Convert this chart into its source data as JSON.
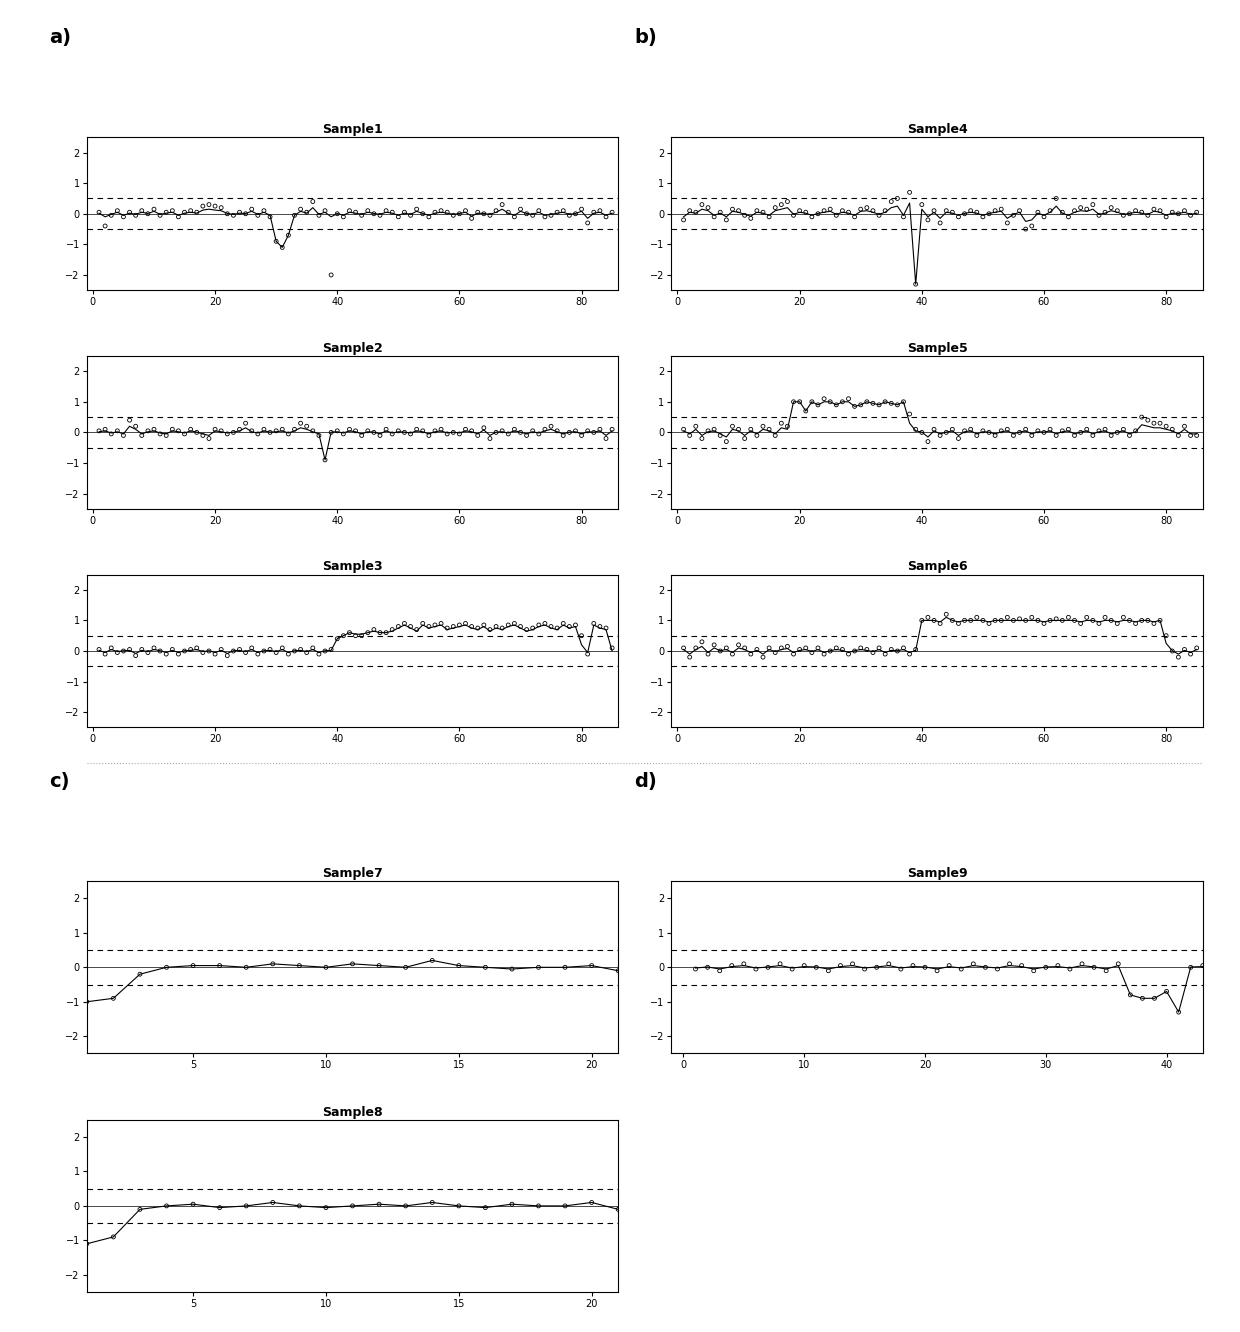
{
  "panels": {
    "a_label": "a)",
    "b_label": "b)",
    "c_label": "c)",
    "d_label": "d)"
  },
  "sample1": {
    "title": "Sample1",
    "n": 85,
    "xlim": [
      -1,
      86
    ],
    "ylim": [
      -2.5,
      2.5
    ],
    "yticks": [
      -2,
      -1,
      0,
      1,
      2
    ],
    "xticks": [
      0,
      20,
      40,
      60,
      80
    ],
    "threshold": 0.5,
    "scatter_y": [
      0.05,
      -0.4,
      -0.05,
      0.1,
      -0.1,
      0.05,
      -0.05,
      0.1,
      0.0,
      0.15,
      -0.05,
      0.05,
      0.1,
      -0.1,
      0.05,
      0.1,
      0.05,
      0.25,
      0.3,
      0.25,
      0.2,
      0.0,
      -0.05,
      0.05,
      0.0,
      0.15,
      -0.05,
      0.1,
      -0.1,
      -0.9,
      -1.1,
      -0.7,
      -0.05,
      0.15,
      0.05,
      0.4,
      -0.05,
      0.1,
      -2.0,
      0.0,
      -0.1,
      0.1,
      0.05,
      -0.05,
      0.1,
      0.0,
      -0.05,
      0.1,
      0.05,
      -0.1,
      0.05,
      -0.05,
      0.15,
      0.0,
      -0.1,
      0.05,
      0.1,
      0.05,
      -0.05,
      0.0,
      0.1,
      -0.15,
      0.05,
      0.0,
      -0.05,
      0.1,
      0.3,
      0.05,
      -0.1,
      0.15,
      0.0,
      -0.05,
      0.1,
      -0.1,
      -0.05,
      0.05,
      0.1,
      -0.05,
      0.0,
      0.15,
      -0.3,
      0.05,
      0.1,
      -0.1,
      0.05
    ],
    "line_y": [
      0.02,
      -0.1,
      -0.02,
      0.05,
      -0.05,
      0.02,
      -0.02,
      0.05,
      0.01,
      0.08,
      -0.02,
      0.02,
      0.05,
      -0.05,
      0.02,
      0.05,
      0.02,
      0.12,
      0.15,
      0.12,
      0.1,
      0.01,
      -0.02,
      0.02,
      0.01,
      0.08,
      -0.02,
      0.05,
      -0.05,
      -0.9,
      -1.1,
      -0.7,
      -0.05,
      0.08,
      0.02,
      0.2,
      -0.02,
      0.05,
      -0.1,
      0.01,
      -0.05,
      0.05,
      0.02,
      -0.02,
      0.05,
      0.01,
      -0.02,
      0.05,
      0.02,
      -0.05,
      0.02,
      -0.02,
      0.08,
      0.01,
      -0.05,
      0.02,
      0.05,
      0.02,
      -0.02,
      0.01,
      0.05,
      -0.08,
      0.02,
      0.01,
      -0.02,
      0.05,
      0.15,
      0.02,
      -0.05,
      0.08,
      0.01,
      -0.02,
      0.05,
      -0.05,
      -0.02,
      0.02,
      0.05,
      -0.02,
      0.01,
      0.08,
      -0.15,
      0.02,
      0.05,
      -0.05,
      0.02
    ]
  },
  "sample2": {
    "title": "Sample2",
    "n": 85,
    "xlim": [
      -1,
      86
    ],
    "ylim": [
      -2.5,
      2.5
    ],
    "yticks": [
      -2,
      -1,
      0,
      1,
      2
    ],
    "xticks": [
      0,
      20,
      40,
      60,
      80
    ],
    "threshold": 0.5,
    "scatter_y": [
      0.05,
      0.1,
      -0.05,
      0.05,
      -0.1,
      0.4,
      0.2,
      -0.1,
      0.05,
      0.1,
      -0.05,
      -0.1,
      0.1,
      0.05,
      -0.05,
      0.1,
      0.0,
      -0.1,
      -0.2,
      0.1,
      0.05,
      -0.05,
      0.0,
      0.1,
      0.3,
      0.05,
      -0.05,
      0.1,
      0.0,
      0.05,
      0.1,
      -0.05,
      0.1,
      0.3,
      0.2,
      0.05,
      -0.1,
      -0.9,
      0.0,
      0.05,
      -0.05,
      0.1,
      0.05,
      -0.1,
      0.05,
      0.0,
      -0.1,
      0.1,
      -0.05,
      0.05,
      0.0,
      -0.05,
      0.1,
      0.05,
      -0.1,
      0.05,
      0.1,
      -0.05,
      0.0,
      -0.05,
      0.1,
      0.05,
      -0.1,
      0.15,
      -0.2,
      0.0,
      0.05,
      -0.05,
      0.1,
      0.0,
      -0.1,
      0.05,
      -0.05,
      0.1,
      0.2,
      0.05,
      -0.1,
      0.0,
      0.05,
      -0.1,
      0.05,
      0.0,
      0.1,
      -0.2,
      0.1
    ],
    "line_y": [
      0.02,
      0.05,
      -0.02,
      0.02,
      -0.05,
      0.2,
      0.1,
      -0.05,
      0.02,
      0.05,
      -0.02,
      -0.05,
      0.05,
      0.02,
      -0.02,
      0.05,
      0.01,
      -0.05,
      -0.1,
      0.05,
      0.02,
      -0.02,
      0.01,
      0.05,
      0.15,
      0.02,
      -0.02,
      0.05,
      0.01,
      0.02,
      0.05,
      -0.02,
      0.05,
      0.15,
      0.1,
      0.02,
      -0.05,
      -0.9,
      0.01,
      0.02,
      -0.02,
      0.05,
      0.02,
      -0.05,
      0.02,
      0.01,
      -0.05,
      0.05,
      -0.02,
      0.02,
      0.01,
      -0.02,
      0.05,
      0.02,
      -0.05,
      0.02,
      0.05,
      -0.02,
      0.01,
      -0.02,
      0.05,
      0.02,
      -0.05,
      0.08,
      -0.1,
      0.01,
      0.02,
      -0.02,
      0.05,
      0.01,
      -0.05,
      0.02,
      -0.02,
      0.05,
      0.1,
      0.02,
      -0.05,
      0.01,
      0.02,
      -0.05,
      0.02,
      0.01,
      0.05,
      -0.1,
      0.05
    ]
  },
  "sample3": {
    "title": "Sample3",
    "n": 85,
    "xlim": [
      -1,
      86
    ],
    "ylim": [
      -2.5,
      2.5
    ],
    "yticks": [
      -2,
      -1,
      0,
      1,
      2
    ],
    "xticks": [
      0,
      20,
      40,
      60,
      80
    ],
    "threshold": 0.5,
    "scatter_y": [
      0.05,
      -0.1,
      0.1,
      -0.05,
      0.0,
      0.05,
      -0.15,
      0.05,
      -0.05,
      0.1,
      0.0,
      -0.1,
      0.05,
      -0.1,
      0.0,
      0.05,
      0.1,
      -0.05,
      0.0,
      -0.1,
      0.05,
      -0.15,
      0.0,
      0.05,
      -0.05,
      0.1,
      -0.1,
      0.0,
      0.05,
      -0.05,
      0.1,
      -0.1,
      0.0,
      0.05,
      -0.05,
      0.1,
      -0.1,
      0.0,
      0.05,
      0.4,
      0.5,
      0.6,
      0.5,
      0.5,
      0.6,
      0.7,
      0.6,
      0.6,
      0.7,
      0.8,
      0.9,
      0.8,
      0.7,
      0.9,
      0.8,
      0.85,
      0.9,
      0.75,
      0.8,
      0.85,
      0.9,
      0.8,
      0.75,
      0.85,
      0.7,
      0.8,
      0.75,
      0.85,
      0.9,
      0.8,
      0.7,
      0.75,
      0.85,
      0.9,
      0.8,
      0.75,
      0.9,
      0.8,
      0.85,
      0.5,
      -0.1,
      0.9,
      0.8,
      0.75,
      0.1
    ],
    "line_y": [
      0.02,
      -0.05,
      0.05,
      -0.02,
      0.01,
      0.02,
      -0.08,
      0.02,
      -0.02,
      0.05,
      0.01,
      -0.05,
      0.02,
      -0.05,
      0.01,
      0.02,
      0.05,
      -0.02,
      0.01,
      -0.05,
      0.02,
      -0.08,
      0.01,
      0.02,
      -0.02,
      0.05,
      -0.05,
      0.01,
      0.02,
      -0.02,
      0.05,
      -0.05,
      0.01,
      0.02,
      -0.02,
      0.05,
      -0.05,
      0.01,
      0.02,
      0.4,
      0.5,
      0.6,
      0.55,
      0.55,
      0.6,
      0.65,
      0.6,
      0.6,
      0.65,
      0.75,
      0.85,
      0.75,
      0.65,
      0.85,
      0.75,
      0.8,
      0.85,
      0.7,
      0.75,
      0.8,
      0.85,
      0.75,
      0.7,
      0.8,
      0.65,
      0.75,
      0.7,
      0.8,
      0.85,
      0.75,
      0.65,
      0.7,
      0.8,
      0.85,
      0.75,
      0.7,
      0.85,
      0.75,
      0.8,
      0.2,
      -0.05,
      0.85,
      0.75,
      0.7,
      0.0
    ]
  },
  "sample4": {
    "title": "Sample4",
    "n": 85,
    "xlim": [
      -1,
      86
    ],
    "ylim": [
      -2.5,
      2.5
    ],
    "yticks": [
      -2,
      -1,
      0,
      1,
      2
    ],
    "xticks": [
      0,
      20,
      40,
      60,
      80
    ],
    "threshold": 0.5,
    "scatter_y": [
      -0.2,
      0.1,
      0.05,
      0.3,
      0.2,
      -0.1,
      0.05,
      -0.2,
      0.15,
      0.1,
      -0.05,
      -0.15,
      0.1,
      0.05,
      -0.1,
      0.2,
      0.3,
      0.4,
      -0.05,
      0.1,
      0.05,
      -0.1,
      0.0,
      0.1,
      0.15,
      -0.05,
      0.1,
      0.05,
      -0.1,
      0.15,
      0.2,
      0.1,
      -0.05,
      0.1,
      0.4,
      0.5,
      -0.1,
      0.7,
      -2.3,
      0.3,
      -0.2,
      0.1,
      -0.3,
      0.1,
      0.05,
      -0.1,
      0.0,
      0.1,
      0.05,
      -0.1,
      0.0,
      0.1,
      0.15,
      -0.3,
      -0.05,
      0.1,
      -0.5,
      -0.4,
      0.05,
      -0.1,
      0.1,
      0.5,
      0.05,
      -0.1,
      0.1,
      0.2,
      0.15,
      0.3,
      -0.05,
      0.05,
      0.2,
      0.1,
      -0.05,
      0.0,
      0.1,
      0.05,
      -0.05,
      0.15,
      0.1,
      -0.1,
      0.05,
      0.0,
      0.1,
      -0.05,
      0.05
    ],
    "line_y": [
      -0.1,
      0.05,
      0.02,
      0.15,
      0.1,
      -0.05,
      0.02,
      -0.1,
      0.08,
      0.05,
      -0.02,
      -0.08,
      0.05,
      0.02,
      -0.05,
      0.1,
      0.15,
      0.2,
      -0.02,
      0.05,
      0.02,
      -0.05,
      0.01,
      0.05,
      0.08,
      -0.02,
      0.05,
      0.02,
      -0.05,
      0.08,
      0.1,
      0.05,
      -0.02,
      0.05,
      0.2,
      0.25,
      -0.05,
      0.35,
      -2.3,
      0.15,
      -0.1,
      0.05,
      -0.15,
      0.05,
      0.02,
      -0.05,
      0.01,
      0.05,
      0.02,
      -0.05,
      0.01,
      0.05,
      0.08,
      -0.15,
      -0.02,
      0.05,
      -0.25,
      -0.2,
      0.02,
      -0.05,
      0.05,
      0.25,
      0.02,
      -0.05,
      0.05,
      0.1,
      0.08,
      0.15,
      -0.02,
      0.02,
      0.1,
      0.05,
      -0.02,
      0.01,
      0.05,
      0.02,
      -0.02,
      0.08,
      0.05,
      -0.05,
      0.02,
      0.01,
      0.05,
      -0.02,
      0.02
    ]
  },
  "sample5": {
    "title": "Sample5",
    "n": 85,
    "xlim": [
      -1,
      86
    ],
    "ylim": [
      -2.5,
      2.5
    ],
    "yticks": [
      -2,
      -1,
      0,
      1,
      2
    ],
    "xticks": [
      0,
      20,
      40,
      60,
      80
    ],
    "threshold": 0.5,
    "scatter_y": [
      0.1,
      -0.1,
      0.2,
      -0.2,
      0.05,
      0.1,
      -0.1,
      -0.3,
      0.2,
      0.1,
      -0.2,
      0.1,
      -0.1,
      0.2,
      0.1,
      -0.1,
      0.3,
      0.2,
      1.0,
      1.0,
      0.7,
      1.0,
      0.9,
      1.1,
      1.0,
      0.9,
      1.0,
      1.1,
      0.85,
      0.9,
      1.0,
      0.95,
      0.9,
      1.0,
      0.95,
      0.9,
      1.0,
      0.6,
      0.1,
      0.0,
      -0.3,
      0.1,
      -0.1,
      0.0,
      0.1,
      -0.2,
      0.05,
      0.1,
      -0.1,
      0.05,
      0.0,
      -0.1,
      0.05,
      0.1,
      -0.1,
      0.0,
      0.1,
      -0.1,
      0.05,
      0.0,
      0.1,
      -0.1,
      0.05,
      0.1,
      -0.1,
      0.0,
      0.1,
      -0.1,
      0.05,
      0.1,
      -0.1,
      0.0,
      0.1,
      -0.1,
      0.05,
      0.5,
      0.4,
      0.3,
      0.3,
      0.2,
      0.1,
      -0.1,
      0.2,
      -0.1,
      -0.1
    ],
    "line_y": [
      0.05,
      -0.05,
      0.1,
      -0.1,
      0.02,
      0.05,
      -0.05,
      -0.15,
      0.1,
      0.05,
      -0.1,
      0.05,
      -0.05,
      0.1,
      0.05,
      -0.05,
      0.15,
      0.1,
      1.0,
      1.0,
      0.7,
      1.0,
      0.9,
      1.0,
      1.0,
      0.9,
      1.0,
      1.0,
      0.85,
      0.9,
      1.0,
      0.95,
      0.9,
      1.0,
      0.95,
      0.9,
      1.0,
      0.3,
      0.05,
      0.01,
      -0.15,
      0.05,
      -0.05,
      0.01,
      0.05,
      -0.1,
      0.02,
      0.05,
      -0.05,
      0.02,
      0.01,
      -0.05,
      0.02,
      0.05,
      -0.05,
      0.01,
      0.05,
      -0.05,
      0.02,
      0.01,
      0.05,
      -0.05,
      0.02,
      0.05,
      -0.05,
      0.01,
      0.05,
      -0.05,
      0.02,
      0.05,
      -0.05,
      0.01,
      0.05,
      -0.05,
      0.02,
      0.25,
      0.2,
      0.15,
      0.15,
      0.1,
      0.05,
      -0.05,
      0.1,
      -0.05,
      -0.05
    ]
  },
  "sample6": {
    "title": "Sample6",
    "n": 85,
    "xlim": [
      -1,
      86
    ],
    "ylim": [
      -2.5,
      2.5
    ],
    "yticks": [
      -2,
      -1,
      0,
      1,
      2
    ],
    "xticks": [
      0,
      20,
      40,
      60,
      80
    ],
    "threshold": 0.5,
    "scatter_y": [
      0.1,
      -0.2,
      0.1,
      0.3,
      -0.1,
      0.2,
      0.0,
      0.1,
      -0.1,
      0.2,
      0.1,
      -0.1,
      0.05,
      -0.2,
      0.1,
      -0.05,
      0.1,
      0.15,
      -0.1,
      0.05,
      0.1,
      -0.05,
      0.1,
      -0.1,
      0.0,
      0.1,
      0.05,
      -0.1,
      0.0,
      0.1,
      0.05,
      -0.05,
      0.1,
      -0.1,
      0.05,
      0.0,
      0.1,
      -0.1,
      0.05,
      1.0,
      1.1,
      1.0,
      0.9,
      1.2,
      1.0,
      0.9,
      1.0,
      1.0,
      1.1,
      1.0,
      0.9,
      1.0,
      1.0,
      1.1,
      1.0,
      1.05,
      1.0,
      1.1,
      1.0,
      0.9,
      1.0,
      1.05,
      1.0,
      1.1,
      1.0,
      0.9,
      1.1,
      1.0,
      0.9,
      1.1,
      1.0,
      0.9,
      1.1,
      1.0,
      0.9,
      1.0,
      1.0,
      0.9,
      1.0,
      0.5,
      0.0,
      -0.2,
      0.05,
      -0.1,
      0.1
    ],
    "line_y": [
      0.05,
      -0.1,
      0.05,
      0.15,
      -0.05,
      0.1,
      0.01,
      0.05,
      -0.05,
      0.1,
      0.05,
      -0.05,
      0.02,
      -0.1,
      0.05,
      -0.02,
      0.05,
      0.08,
      -0.05,
      0.02,
      0.05,
      -0.02,
      0.05,
      -0.05,
      0.01,
      0.05,
      0.02,
      -0.05,
      0.01,
      0.05,
      0.02,
      -0.02,
      0.05,
      -0.05,
      0.02,
      0.01,
      0.05,
      -0.05,
      0.02,
      1.0,
      1.0,
      1.0,
      0.95,
      1.1,
      1.0,
      0.95,
      1.0,
      1.0,
      1.0,
      1.0,
      0.95,
      1.0,
      1.0,
      1.0,
      1.0,
      1.0,
      1.0,
      1.0,
      1.0,
      0.95,
      1.0,
      1.0,
      1.0,
      1.0,
      1.0,
      0.95,
      1.0,
      1.0,
      0.95,
      1.0,
      1.0,
      0.95,
      1.0,
      1.0,
      0.95,
      1.0,
      1.0,
      0.95,
      1.0,
      0.25,
      0.01,
      -0.1,
      0.02,
      -0.05,
      0.05
    ]
  },
  "sample7": {
    "title": "Sample7",
    "n": 21,
    "xlim": [
      1,
      21
    ],
    "ylim": [
      -2.5,
      2.5
    ],
    "yticks": [
      -2,
      -1,
      0,
      1,
      2
    ],
    "xticks": [
      5,
      10,
      15,
      20
    ],
    "threshold": 0.5,
    "scatter_y": [
      -1.0,
      -0.9,
      -0.2,
      0.0,
      0.05,
      0.05,
      0.0,
      0.1,
      0.05,
      0.0,
      0.1,
      0.05,
      0.0,
      0.2,
      0.05,
      0.0,
      -0.05,
      0.0,
      0.0,
      0.05,
      -0.1
    ],
    "line_y": [
      -1.0,
      -0.9,
      -0.2,
      0.0,
      0.05,
      0.05,
      0.0,
      0.1,
      0.05,
      0.0,
      0.1,
      0.05,
      0.0,
      0.2,
      0.05,
      0.0,
      -0.05,
      0.0,
      0.0,
      0.05,
      -0.1
    ]
  },
  "sample8": {
    "title": "Sample8",
    "n": 21,
    "xlim": [
      1,
      21
    ],
    "ylim": [
      -2.5,
      2.5
    ],
    "yticks": [
      -2,
      -1,
      0,
      1,
      2
    ],
    "xticks": [
      5,
      10,
      15,
      20
    ],
    "threshold": 0.5,
    "scatter_y": [
      -1.1,
      -0.9,
      -0.1,
      0.0,
      0.05,
      -0.05,
      0.0,
      0.1,
      0.0,
      -0.05,
      0.0,
      0.05,
      0.0,
      0.1,
      0.0,
      -0.05,
      0.05,
      0.0,
      0.0,
      0.1,
      -0.1
    ],
    "line_y": [
      -1.1,
      -0.9,
      -0.1,
      0.0,
      0.05,
      -0.05,
      0.0,
      0.1,
      0.0,
      -0.05,
      0.0,
      0.05,
      0.0,
      0.1,
      0.0,
      -0.05,
      0.05,
      0.0,
      0.0,
      0.1,
      -0.1
    ]
  },
  "sample9": {
    "title": "Sample9",
    "n": 43,
    "xlim": [
      -1,
      43
    ],
    "ylim": [
      -2.5,
      2.5
    ],
    "yticks": [
      -2,
      -1,
      0,
      1,
      2
    ],
    "xticks": [
      0,
      10,
      20,
      30,
      40
    ],
    "threshold": 0.5,
    "scatter_y": [
      -0.05,
      0.0,
      -0.1,
      0.05,
      0.1,
      -0.05,
      0.0,
      0.1,
      -0.05,
      0.05,
      0.0,
      -0.1,
      0.05,
      0.1,
      -0.05,
      0.0,
      0.1,
      -0.05,
      0.05,
      0.0,
      -0.1,
      0.05,
      -0.05,
      0.1,
      0.0,
      -0.05,
      0.1,
      0.05,
      -0.1,
      0.0,
      0.05,
      -0.05,
      0.1,
      0.0,
      -0.1,
      0.1,
      -0.8,
      -0.9,
      -0.9,
      -0.7,
      -1.3,
      0.0,
      0.05
    ],
    "line_y": [
      -0.02,
      0.01,
      -0.05,
      0.02,
      0.05,
      -0.02,
      0.01,
      0.05,
      -0.02,
      0.02,
      0.01,
      -0.05,
      0.02,
      0.05,
      -0.02,
      0.01,
      0.05,
      -0.02,
      0.02,
      0.01,
      -0.05,
      0.02,
      -0.02,
      0.05,
      0.01,
      -0.02,
      0.05,
      0.02,
      -0.05,
      0.01,
      0.02,
      -0.02,
      0.05,
      0.01,
      -0.05,
      0.05,
      -0.8,
      -0.9,
      -0.9,
      -0.7,
      -1.3,
      0.01,
      0.02
    ]
  },
  "background_color": "#ffffff",
  "line_color": "#000000",
  "threshold_color": "#000000",
  "label_fontsize": 14,
  "title_fontsize": 9,
  "tick_fontsize": 7,
  "separator_color": "#aaaaaa",
  "separator_style": ":"
}
